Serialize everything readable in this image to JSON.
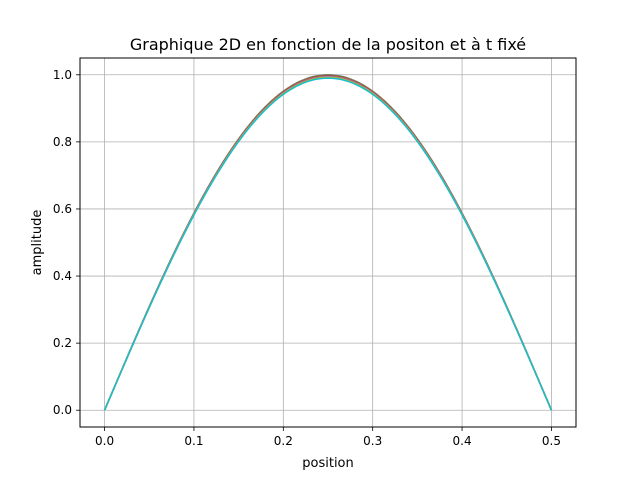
{
  "chart_data": {
    "type": "line",
    "title": "Graphique 2D en fonction de la positon et à t fixé",
    "xlabel": "position",
    "ylabel": "amplitude",
    "xlim": [
      -0.0275,
      0.5275
    ],
    "ylim": [
      -0.05,
      1.05
    ],
    "x_ticks": [
      0.0,
      0.1,
      0.2,
      0.3,
      0.4,
      0.5
    ],
    "x_tick_labels": [
      "0.0",
      "0.1",
      "0.2",
      "0.3",
      "0.4",
      "0.5"
    ],
    "y_ticks": [
      0.0,
      0.2,
      0.4,
      0.6,
      0.8,
      1.0
    ],
    "y_tick_labels": [
      "0.0",
      "0.2",
      "0.4",
      "0.6",
      "0.8",
      "1.0"
    ],
    "grid": true,
    "legend": "none",
    "x_range": [
      0.0,
      0.5
    ],
    "series": [
      {
        "color": "#1f77b4",
        "amplitude": 1.0
      },
      {
        "color": "#ff7f0e",
        "amplitude": 0.999
      },
      {
        "color": "#2ca02c",
        "amplitude": 0.998
      },
      {
        "color": "#d62728",
        "amplitude": 0.997
      },
      {
        "color": "#9467bd",
        "amplitude": 0.996
      },
      {
        "color": "#8c564b",
        "amplitude": 0.995
      },
      {
        "color": "#e377c2",
        "amplitude": 0.994
      },
      {
        "color": "#7f7f7f",
        "amplitude": 0.993
      },
      {
        "color": "#bcbd22",
        "amplitude": 0.992
      },
      {
        "color": "#17becf",
        "amplitude": 0.99
      }
    ]
  }
}
